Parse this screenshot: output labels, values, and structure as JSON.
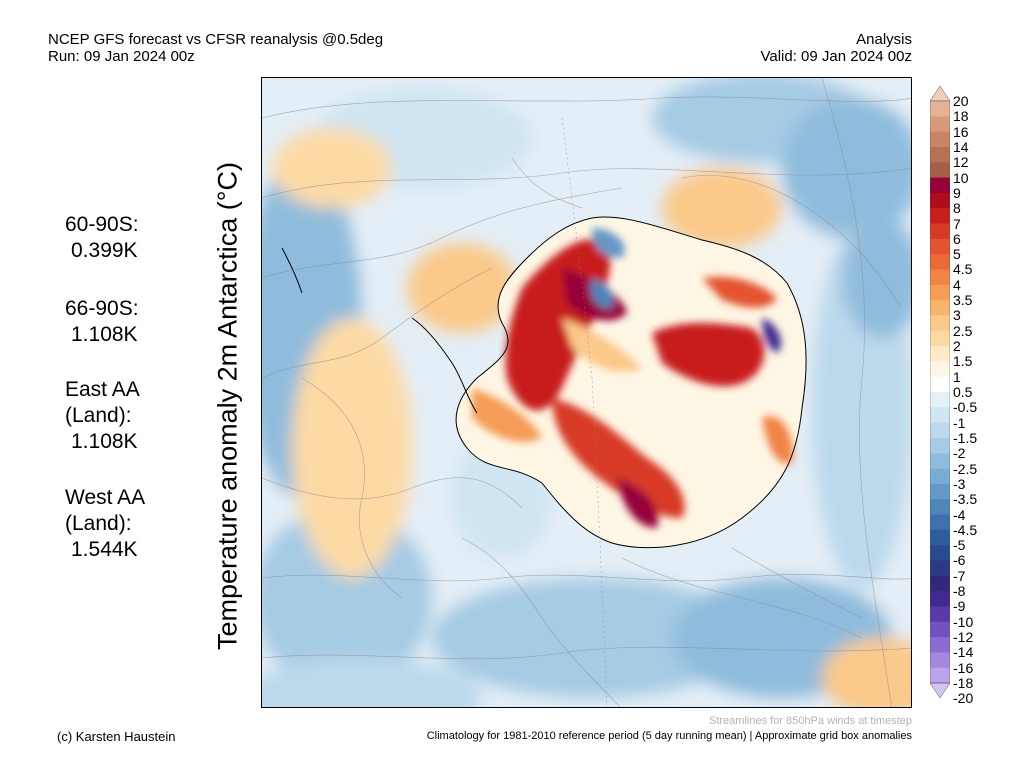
{
  "header": {
    "title_line1": "NCEP GFS forecast vs CFSR reanalysis @0.5deg",
    "title_line2": "Run: 09 Jan 2024 00z",
    "right_line1": "Analysis",
    "right_line2": "Valid: 09 Jan 2024 00z"
  },
  "map": {
    "ylabel": "Temperature anomaly 2m Antarctica (°C)"
  },
  "stats": [
    {
      "label": "60-90S:",
      "value": "0.399K"
    },
    {
      "label": "66-90S:",
      "value": "1.108K"
    },
    {
      "label": "East AA",
      "label2": "(Land):",
      "value": "1.108K"
    },
    {
      "label": "West AA",
      "label2": "(Land):",
      "value": "1.544K"
    }
  ],
  "colorbar": {
    "labels": [
      "20",
      "18",
      "16",
      "14",
      "12",
      "10",
      "9",
      "8",
      "7",
      "6",
      "5",
      "4.5",
      "4",
      "3.5",
      "3",
      "2.5",
      "2",
      "1.5",
      "1",
      "0.5",
      "-0.5",
      "-1",
      "-1.5",
      "-2",
      "-2.5",
      "-3",
      "-3.5",
      "-4",
      "-4.5",
      "-5",
      "-6",
      "-7",
      "-8",
      "-9",
      "-10",
      "-12",
      "-14",
      "-16",
      "-18",
      "-20"
    ],
    "colors": [
      "#f3cdb8",
      "#e7b196",
      "#d99a7c",
      "#c98564",
      "#b77153",
      "#a55f47",
      "#96003a",
      "#b00d1c",
      "#c81e1e",
      "#d73a26",
      "#e3532e",
      "#ea6a38",
      "#f08444",
      "#f59c56",
      "#f8b46e",
      "#fbc989",
      "#fddaa4",
      "#feeac4",
      "#fef6e4",
      "#ffffff",
      "#e4f1f8",
      "#cfe5f2",
      "#bcd9ec",
      "#a6cbe4",
      "#8fbcdc",
      "#79acd3",
      "#6398c7",
      "#5085bc",
      "#3e70ae",
      "#2f5c9f",
      "#2a4b90",
      "#2b3a85",
      "#30297a",
      "#412a8f",
      "#5a3aa8",
      "#7250bf",
      "#8c6ad2",
      "#a587e0",
      "#bca4ec",
      "#d3c2f5"
    ]
  },
  "footer": {
    "credit": "(c) Karsten Haustein",
    "streamline_note": "Streamlines for 850hPa winds at timestep",
    "climatology_note": "Climatology for 1981-2010 reference period (5 day running mean) | Approximate grid box anomalies"
  }
}
